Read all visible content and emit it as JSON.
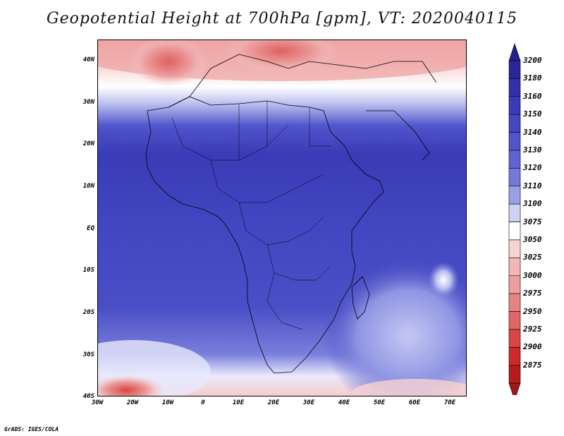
{
  "title": "Geopotential Height at 700hPa [gpm], VT: 2020040115",
  "credit": "GrADS: IGES/COLA",
  "lat_ticks": [
    "40N",
    "30N",
    "20N",
    "10N",
    "EQ",
    "10S",
    "20S",
    "30S",
    "40S"
  ],
  "lon_ticks": [
    "30W",
    "20W",
    "10W",
    "0",
    "10E",
    "20E",
    "30E",
    "40E",
    "50E",
    "60E",
    "70E"
  ],
  "colorbar": {
    "levels": [
      "3200",
      "3180",
      "3160",
      "3150",
      "3140",
      "3130",
      "3120",
      "3110",
      "3100",
      "3075",
      "3050",
      "3025",
      "3000",
      "2975",
      "2950",
      "2925",
      "2900",
      "2875"
    ],
    "colors": [
      "#2a2599",
      "#3330a8",
      "#3a3bb7",
      "#4348c2",
      "#5055cb",
      "#5f64d2",
      "#7479da",
      "#9a9fe6",
      "#cfd2f4",
      "#ffffff",
      "#f8d3d3",
      "#f2b6b6",
      "#ec9e9e",
      "#e68383",
      "#e06666",
      "#d94545",
      "#cc2a2a",
      "#b51c1c"
    ],
    "top_arrow_color": "#231f8f",
    "bottom_arrow_color": "#a01818"
  }
}
